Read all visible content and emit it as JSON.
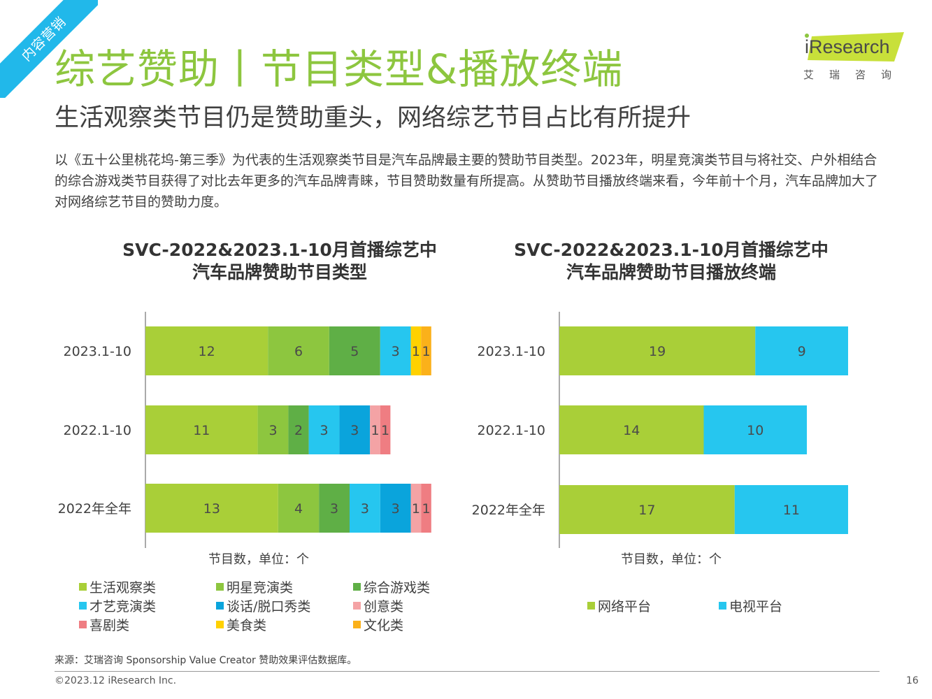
{
  "corner_tag": "内容营销",
  "header": {
    "title": "综艺赞助丨节目类型&播放终端",
    "subtitle": "生活观察类节目仍是赞助重头，网络综艺节目占比有所提升",
    "description": "以《五十公里桃花坞-第三季》为代表的生活观察类节目是汽车品牌最主要的赞助节目类型。2023年，明星竞演类节目与将社交、户外相结合的综合游戏类节目获得了对比去年更多的汽车品牌青睐，节目赞助数量有所提高。从赞助节目播放终端来看，今年前十个月，汽车品牌加大了对网络综艺节目的赞助力度。"
  },
  "logo": {
    "text": "iResearch",
    "cn": "艾瑞咨询",
    "color": "#c8e03a"
  },
  "chart_data": [
    {
      "type": "bar",
      "orientation": "horizontal",
      "stacked": true,
      "title_lines": [
        "SVC-2022&2023.1-10月首播综艺中",
        "汽车品牌赞助节目类型"
      ],
      "unit_label": "节目数，单位：个",
      "categories": [
        "2023.1-10",
        "2022.1-10",
        "2022年全年"
      ],
      "series": [
        {
          "name": "生活观察类",
          "color": "#a9cf38",
          "values": [
            12,
            11,
            13
          ]
        },
        {
          "name": "明星竞演类",
          "color": "#8dc63f",
          "values": [
            6,
            3,
            4
          ]
        },
        {
          "name": "综合游戏类",
          "color": "#5faf46",
          "values": [
            5,
            2,
            3
          ]
        },
        {
          "name": "才艺竞演类",
          "color": "#26c6ef",
          "values": [
            3,
            3,
            3
          ]
        },
        {
          "name": "谈话/脱口秀类",
          "color": "#0aa4dc",
          "values": [
            0,
            3,
            3
          ]
        },
        {
          "name": "创意类",
          "color": "#f4a3a5",
          "values": [
            0,
            1,
            1
          ]
        },
        {
          "name": "喜剧类",
          "color": "#ef7d82",
          "values": [
            0,
            1,
            1
          ]
        },
        {
          "name": "美食类",
          "color": "#ffd100",
          "values": [
            1,
            0,
            0
          ]
        },
        {
          "name": "文化类",
          "color": "#fbb11a",
          "values": [
            1,
            0,
            0
          ]
        }
      ],
      "legend_columns": 3,
      "grid": false
    },
    {
      "type": "bar",
      "orientation": "horizontal",
      "stacked": true,
      "title_lines": [
        "SVC-2022&2023.1-10月首播综艺中",
        "汽车品牌赞助节目播放终端"
      ],
      "unit_label": "节目数，单位：个",
      "categories": [
        "2023.1-10",
        "2022.1-10",
        "2022年全年"
      ],
      "series": [
        {
          "name": "网络平台",
          "color": "#a9cf38",
          "values": [
            19,
            14,
            17
          ]
        },
        {
          "name": "电视平台",
          "color": "#26c6ef",
          "values": [
            9,
            10,
            11
          ]
        }
      ],
      "legend_columns": 2,
      "grid": false
    }
  ],
  "footer": {
    "source": "来源：艾瑞咨询 Sponsorship Value Creator 赞助效果评估数据库。",
    "copyright": "©2023.12 iResearch Inc.",
    "page_number": "16"
  }
}
